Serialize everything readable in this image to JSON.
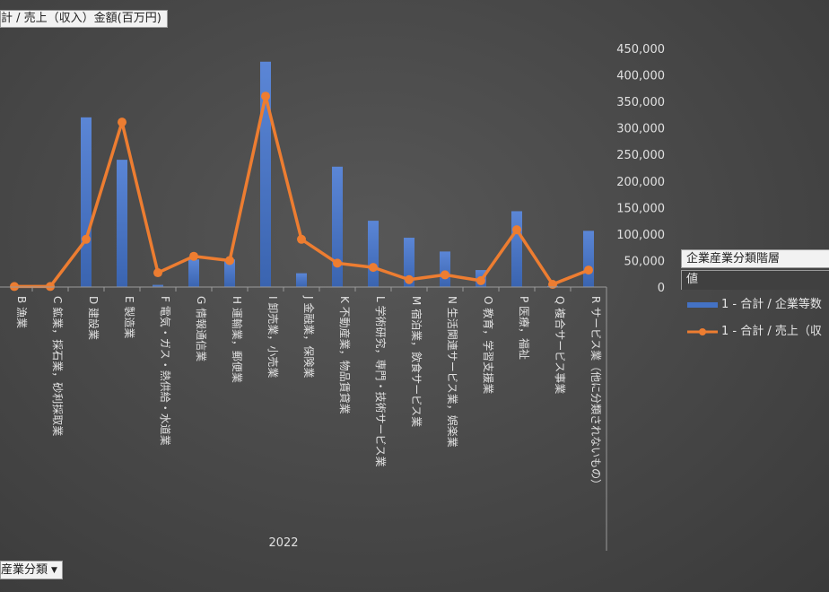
{
  "field_button": "計 / 売上（収入）金額(百万円)",
  "category_filter": {
    "label": "産業分類",
    "arrow": "▼"
  },
  "legend": {
    "header": "企業産業分類階層",
    "subheader": "値",
    "items": [
      {
        "label": "1 - 合計 / 企業等数",
        "color": "#4472c4",
        "kind": "bar"
      },
      {
        "label": "1 - 合計 / 売上（収",
        "color": "#ed7d31",
        "kind": "line"
      }
    ]
  },
  "chart_data": {
    "type": "bar",
    "categories": [
      "B 漁業",
      "C 鉱業，採石業，砂利採取業",
      "D 建設業",
      "E 製造業",
      "F 電気・ガス・熱供給・水道業",
      "G 情報通信業",
      "H 運輸業，郵便業",
      "I 卸売業，小売業",
      "J 金融業，保険業",
      "K 不動産業，物品賃貸業",
      "L 学術研究，専門・技術サービス業",
      "M 宿泊業，飲食サービス業",
      "N 生活関連サービス業，娯楽業",
      "O 教育，学習支援業",
      "P 医療，福祉",
      "Q 複合サービス事業",
      "R サービス業（他に分類されないもの）"
    ],
    "x_group_label": "2022",
    "series": [
      {
        "name": "1 - 合計 / 企業等数",
        "kind": "bar",
        "color": "#4472c4",
        "values": [
          200,
          100,
          320000,
          240000,
          4000,
          52000,
          52000,
          425000,
          26000,
          227000,
          125000,
          93000,
          67000,
          32000,
          143000,
          2000,
          106000
        ]
      },
      {
        "name": "1 - 合計 / 売上（収",
        "kind": "line",
        "color": "#ed7d31",
        "values": [
          1000,
          1000,
          90000,
          311000,
          27000,
          58000,
          50000,
          360000,
          90000,
          45000,
          37000,
          14000,
          23000,
          12000,
          108000,
          5000,
          32000
        ]
      }
    ],
    "y_axis": {
      "position": "right",
      "min": 0,
      "max": 450000,
      "ticks": [
        "0",
        "50,000",
        "100,000",
        "150,000",
        "200,000",
        "250,000",
        "300,000",
        "350,000",
        "400,000",
        "450,000"
      ]
    },
    "grid": false,
    "legend_position": "right"
  }
}
